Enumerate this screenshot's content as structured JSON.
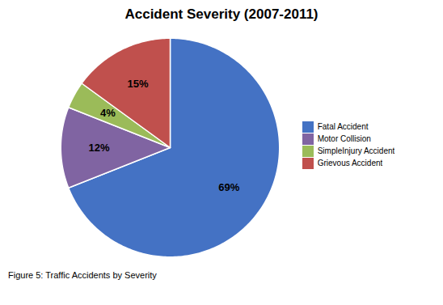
{
  "chart_data": {
    "type": "pie",
    "title": "Accident Severity (2007-2011)",
    "categories": [
      "Fatal Accident",
      "Motor Collision",
      "SimpleInjury Accident",
      "Grievous Accident"
    ],
    "values": [
      69,
      12,
      4,
      15
    ],
    "value_labels": [
      "69%",
      "12%",
      "4%",
      "15%"
    ],
    "colors": [
      "#4472C4",
      "#8064A2",
      "#9BBB59",
      "#C0504D"
    ],
    "data_labels": true,
    "legend": "right",
    "caption": "Figure 5: Traffic Accidents by Severity"
  }
}
